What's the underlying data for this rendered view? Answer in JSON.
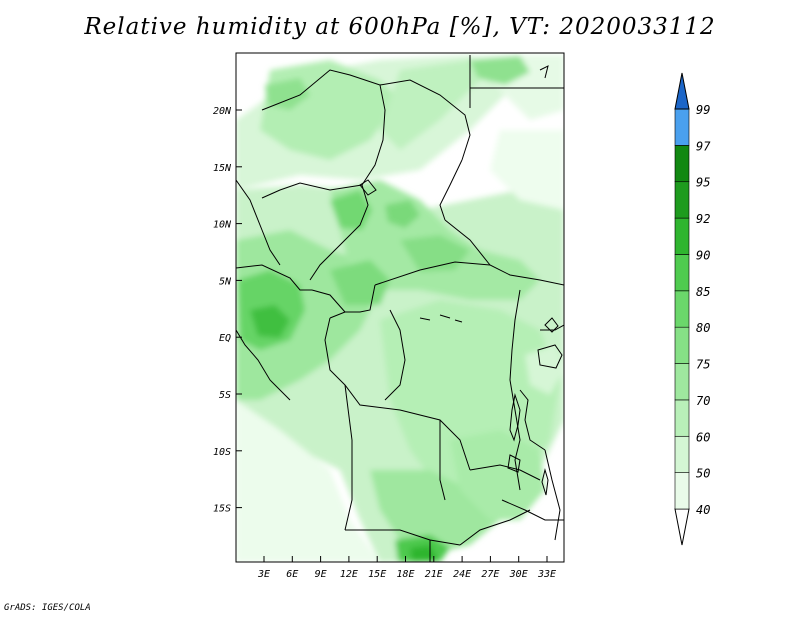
{
  "title": "Relative humidity at 600hPa [%], VT: 2020033112",
  "credit": "GrADS: IGES/COLA",
  "map": {
    "lat_labels": [
      "20N",
      "15N",
      "10N",
      "5N",
      "EQ",
      "5S",
      "10S",
      "15S"
    ],
    "lon_labels": [
      "3E",
      "6E",
      "9E",
      "12E",
      "15E",
      "18E",
      "21E",
      "24E",
      "27E",
      "30E",
      "33E"
    ]
  },
  "colorbar": {
    "labels": [
      "40",
      "50",
      "60",
      "70",
      "75",
      "80",
      "85",
      "90",
      "92",
      "95",
      "97",
      "99"
    ],
    "colors": [
      "#e9fbe9",
      "#d4f6d4",
      "#b9f0b9",
      "#9fe89f",
      "#86e086",
      "#6bd76b",
      "#4fcb4f",
      "#2fb52f",
      "#1e9b1e",
      "#128812",
      "#4aa0ee",
      "#2e7fdc",
      "#1c66c8"
    ]
  }
}
